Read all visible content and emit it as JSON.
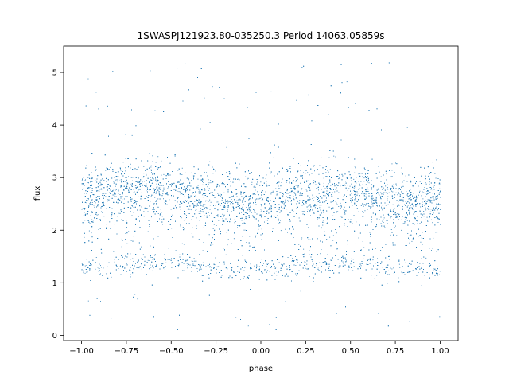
{
  "chart_data": {
    "type": "scatter",
    "title": "1SWASPJ121923.80-035250.3 Period 14063.05859s",
    "xlabel": "phase",
    "ylabel": "flux",
    "xlim": [
      -1.1,
      1.1
    ],
    "ylim": [
      -0.1,
      5.5
    ],
    "x_ticks": [
      -1.0,
      -0.75,
      -0.5,
      -0.25,
      0.0,
      0.25,
      0.5,
      0.75,
      1.0
    ],
    "x_tick_labels": [
      "−1.00",
      "−0.75",
      "−0.50",
      "−0.25",
      "0.00",
      "0.25",
      "0.50",
      "0.75",
      "1.00"
    ],
    "y_ticks": [
      0,
      1,
      2,
      3,
      4,
      5
    ],
    "y_tick_labels": [
      "0",
      "1",
      "2",
      "3",
      "4",
      "5"
    ],
    "grid": false,
    "point_color": "#1f77b4",
    "series": [
      {
        "phase_range": [
          -1.0,
          1.0
        ],
        "upper_band_center": [
          [
            -1.0,
            2.65
          ],
          [
            -0.75,
            2.85
          ],
          [
            -0.5,
            2.78
          ],
          [
            -0.25,
            2.6
          ],
          [
            0.0,
            2.5
          ],
          [
            0.25,
            2.78
          ],
          [
            0.5,
            2.75
          ],
          [
            0.75,
            2.55
          ],
          [
            1.0,
            2.6
          ]
        ],
        "lower_band_center": [
          [
            -1.0,
            1.3
          ],
          [
            -0.75,
            1.35
          ],
          [
            -0.5,
            1.42
          ],
          [
            -0.25,
            1.3
          ],
          [
            0.0,
            1.25
          ],
          [
            0.25,
            1.35
          ],
          [
            0.5,
            1.4
          ],
          [
            0.75,
            1.3
          ],
          [
            1.0,
            1.28
          ]
        ],
        "flux_range": [
          0.1,
          5.25
        ]
      }
    ]
  }
}
